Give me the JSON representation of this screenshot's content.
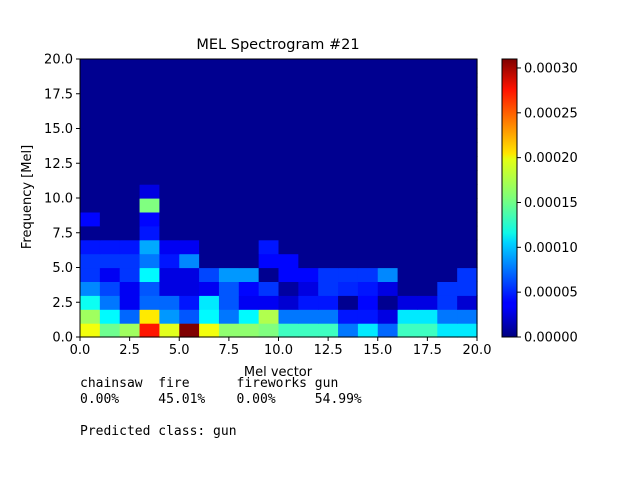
{
  "chart_data": {
    "type": "heatmap",
    "title": "MEL Spectrogram #21",
    "xlabel": "Mel vector",
    "ylabel": "Frequency [Mel]",
    "xlim": [
      0,
      20
    ],
    "ylim": [
      0,
      20
    ],
    "x_ticks": [
      "0.0",
      "2.5",
      "5.0",
      "7.5",
      "10.0",
      "12.5",
      "15.0",
      "17.5",
      "20.0"
    ],
    "y_ticks": [
      "0.0",
      "2.5",
      "5.0",
      "7.5",
      "10.0",
      "12.5",
      "15.0",
      "17.5",
      "20.0"
    ],
    "colorbar": {
      "colormap": "jet",
      "range": [
        0,
        0.00031
      ],
      "ticks": [
        "0.00000",
        "0.00005",
        "0.00010",
        "0.00015",
        "0.00020",
        "0.00025",
        "0.00030"
      ]
    },
    "grid": false,
    "rows_from_bottom": [
      [
        0.00019,
        0.00015,
        0.000165,
        0.000265,
        0.000185,
        0.00031,
        0.00019,
        0.00016,
        0.00016,
        0.000155,
        0.000135,
        0.000135,
        0.000135,
        7.5e-05,
        0.00011,
        7e-05,
        0.000135,
        0.000135,
        0.00011,
        0.00011
      ],
      [
        0.000165,
        0.000115,
        7e-05,
        0.0002,
        8.5e-05,
        6.5e-05,
        0.000115,
        7.5e-05,
        0.000115,
        0.00017,
        7.5e-05,
        7.5e-05,
        7.5e-05,
        4.5e-05,
        4.5e-05,
        3e-05,
        0.00011,
        0.00011,
        7.5e-05,
        7.5e-05
      ],
      [
        0.00012,
        7.5e-05,
        3.5e-05,
        7e-05,
        7e-05,
        4.5e-05,
        0.00011,
        6.5e-05,
        3.5e-05,
        3.5e-05,
        2.5e-05,
        4.5e-05,
        4.5e-05,
        5e-06,
        4e-05,
        5e-06,
        3e-05,
        3e-05,
        5.5e-05,
        2.5e-05
      ],
      [
        8e-05,
        6e-05,
        3.5e-05,
        6.5e-05,
        3e-05,
        3e-05,
        3.5e-05,
        6.5e-05,
        4e-05,
        5.5e-05,
        1e-05,
        3e-05,
        5.5e-05,
        5e-05,
        4.5e-05,
        3e-05,
        5e-06,
        5e-06,
        5.5e-05,
        5.5e-05
      ],
      [
        5.5e-05,
        3.5e-05,
        5.5e-05,
        0.000115,
        3e-05,
        3e-05,
        6e-05,
        8.5e-05,
        8.5e-05,
        5e-06,
        4e-05,
        4e-05,
        5.5e-05,
        5.5e-05,
        5.5e-05,
        8e-05,
        5e-06,
        5e-06,
        5e-06,
        5.5e-05
      ],
      [
        5.5e-05,
        5.5e-05,
        5.5e-05,
        7.5e-05,
        4.5e-05,
        8e-05,
        5e-06,
        5e-06,
        5e-06,
        4e-05,
        4e-05,
        5e-06,
        5e-06,
        5e-06,
        5e-06,
        5e-06,
        5e-06,
        5e-06,
        5e-06,
        5e-06
      ],
      [
        4.5e-05,
        4.5e-05,
        4.5e-05,
        9e-05,
        3.5e-05,
        3.5e-05,
        5e-06,
        5e-06,
        5e-06,
        4.5e-05,
        5e-06,
        5e-06,
        5e-06,
        5e-06,
        5e-06,
        5e-06,
        5e-06,
        5e-06,
        5e-06,
        5e-06
      ],
      [
        5e-06,
        5e-06,
        5e-06,
        4.5e-05,
        5e-06,
        5e-06,
        5e-06,
        5e-06,
        5e-06,
        5e-06,
        5e-06,
        5e-06,
        5e-06,
        5e-06,
        5e-06,
        5e-06,
        5e-06,
        5e-06,
        5e-06,
        5e-06
      ],
      [
        4e-05,
        5e-06,
        5e-06,
        4e-05,
        5e-06,
        5e-06,
        5e-06,
        5e-06,
        5e-06,
        5e-06,
        5e-06,
        5e-06,
        5e-06,
        5e-06,
        5e-06,
        5e-06,
        5e-06,
        5e-06,
        5e-06,
        5e-06
      ],
      [
        5e-06,
        5e-06,
        5e-06,
        0.000155,
        5e-06,
        5e-06,
        5e-06,
        5e-06,
        5e-06,
        5e-06,
        5e-06,
        5e-06,
        5e-06,
        5e-06,
        5e-06,
        5e-06,
        5e-06,
        5e-06,
        5e-06,
        5e-06
      ],
      [
        5e-06,
        5e-06,
        5e-06,
        3e-05,
        5e-06,
        5e-06,
        5e-06,
        5e-06,
        5e-06,
        5e-06,
        5e-06,
        5e-06,
        5e-06,
        5e-06,
        5e-06,
        5e-06,
        5e-06,
        5e-06,
        5e-06,
        5e-06
      ],
      [
        5e-06,
        5e-06,
        5e-06,
        5e-06,
        5e-06,
        5e-06,
        5e-06,
        5e-06,
        5e-06,
        5e-06,
        5e-06,
        5e-06,
        5e-06,
        5e-06,
        5e-06,
        5e-06,
        5e-06,
        5e-06,
        5e-06,
        5e-06
      ],
      [
        5e-06,
        5e-06,
        5e-06,
        5e-06,
        5e-06,
        5e-06,
        5e-06,
        5e-06,
        5e-06,
        5e-06,
        5e-06,
        5e-06,
        5e-06,
        5e-06,
        5e-06,
        5e-06,
        5e-06,
        5e-06,
        5e-06,
        5e-06
      ],
      [
        5e-06,
        5e-06,
        5e-06,
        5e-06,
        5e-06,
        5e-06,
        5e-06,
        5e-06,
        5e-06,
        5e-06,
        5e-06,
        5e-06,
        5e-06,
        5e-06,
        5e-06,
        5e-06,
        5e-06,
        5e-06,
        5e-06,
        5e-06
      ],
      [
        5e-06,
        5e-06,
        5e-06,
        5e-06,
        5e-06,
        5e-06,
        5e-06,
        5e-06,
        5e-06,
        5e-06,
        5e-06,
        5e-06,
        5e-06,
        5e-06,
        5e-06,
        5e-06,
        5e-06,
        5e-06,
        5e-06,
        5e-06
      ],
      [
        5e-06,
        5e-06,
        5e-06,
        5e-06,
        5e-06,
        5e-06,
        5e-06,
        5e-06,
        5e-06,
        5e-06,
        5e-06,
        5e-06,
        5e-06,
        5e-06,
        5e-06,
        5e-06,
        5e-06,
        5e-06,
        5e-06,
        5e-06
      ],
      [
        5e-06,
        5e-06,
        5e-06,
        5e-06,
        5e-06,
        5e-06,
        5e-06,
        5e-06,
        5e-06,
        5e-06,
        5e-06,
        5e-06,
        5e-06,
        5e-06,
        5e-06,
        5e-06,
        5e-06,
        5e-06,
        5e-06,
        5e-06
      ],
      [
        5e-06,
        5e-06,
        5e-06,
        5e-06,
        5e-06,
        5e-06,
        5e-06,
        5e-06,
        5e-06,
        5e-06,
        5e-06,
        5e-06,
        5e-06,
        5e-06,
        5e-06,
        5e-06,
        5e-06,
        5e-06,
        5e-06,
        5e-06
      ],
      [
        5e-06,
        5e-06,
        5e-06,
        5e-06,
        5e-06,
        5e-06,
        5e-06,
        5e-06,
        5e-06,
        5e-06,
        5e-06,
        5e-06,
        5e-06,
        5e-06,
        5e-06,
        5e-06,
        5e-06,
        5e-06,
        5e-06,
        5e-06
      ],
      [
        5e-06,
        5e-06,
        5e-06,
        5e-06,
        5e-06,
        5e-06,
        5e-06,
        5e-06,
        5e-06,
        5e-06,
        5e-06,
        5e-06,
        5e-06,
        5e-06,
        5e-06,
        5e-06,
        5e-06,
        5e-06,
        5e-06,
        5e-06
      ]
    ]
  },
  "prediction": {
    "classes_line": "chainsaw  fire      fireworks gun",
    "probs_line": "0.00%     45.01%    0.00%     54.99%",
    "predicted_line": "Predicted class: gun"
  }
}
